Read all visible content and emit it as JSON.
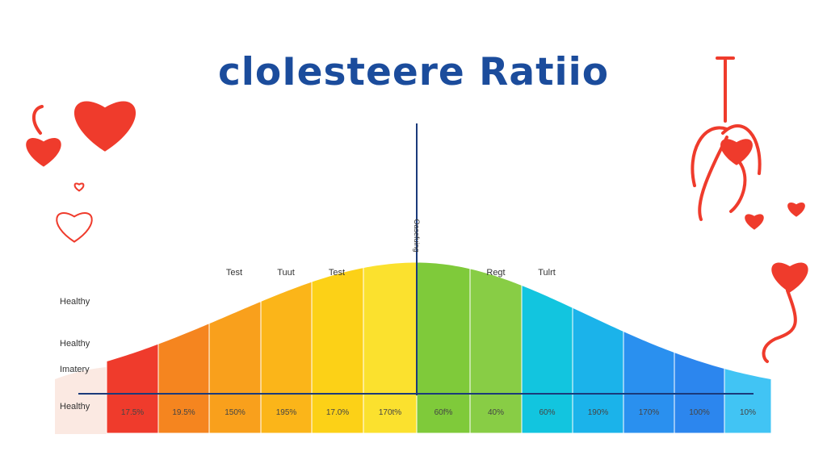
{
  "title": "cloIesteere Ratiio",
  "center_label": "Oasefuing",
  "side_labels": [
    "Healthy",
    "Healthy",
    "Imatery",
    "Healthy"
  ],
  "top_labels": [
    "Test",
    "Tuut",
    "Test",
    "Regt",
    "Tulrt"
  ],
  "chart_data": {
    "type": "area",
    "title": "cloIesteere Ratiio",
    "categories": [
      "17.5%",
      "19.5%",
      "150%",
      "195%",
      "17.0%",
      "170t%",
      "60f%",
      "40%",
      "60%",
      "190%",
      "170%",
      "100%",
      "10%"
    ],
    "band_colors": [
      "#ef3b2c",
      "#f5851f",
      "#f9a01c",
      "#fbb519",
      "#fcd117",
      "#fbe12e",
      "#7fca3a",
      "#88cd45",
      "#12c5df",
      "#1bb3ea",
      "#2a90ef",
      "#2c86ee",
      "#41c4f4"
    ],
    "shape": "bell curve, peak at center line"
  },
  "colors": {
    "title": "#1b4c9c",
    "accent": "#ef3b2c",
    "axis": "#1b3a7a"
  }
}
